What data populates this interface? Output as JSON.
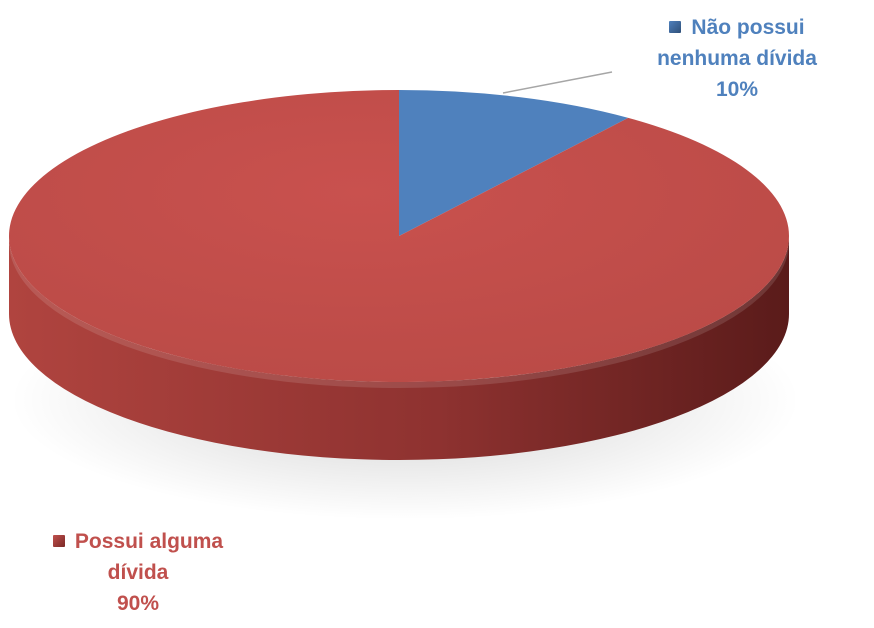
{
  "chart_data": {
    "type": "pie",
    "style": "3d",
    "slices": [
      {
        "label_lines": [
          "Não possui",
          "nenhuma dívida"
        ],
        "percent_label": "10%",
        "value": 10,
        "color": "#4F81BD",
        "side_color": "#2F4F78",
        "text_color": "#4F81BD"
      },
      {
        "label_lines": [
          "Possui alguma",
          "dívida"
        ],
        "percent_label": "90%",
        "value": 90,
        "color": "#C0504D",
        "side_color": "#7A2826",
        "text_color": "#C0504D"
      }
    ],
    "legend": "data labels with legend keys"
  }
}
